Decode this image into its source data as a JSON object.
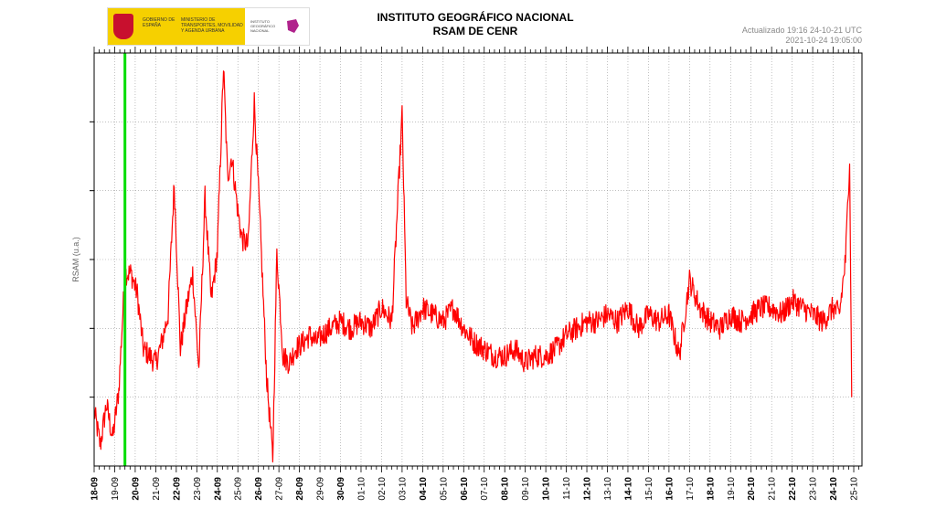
{
  "header": {
    "logo_gov_text": "GOBIERNO DE ESPAÑA",
    "logo_ministry_text": "MINISTERIO DE TRANSPORTES, MOVILIDAD Y AGENDA URBANA",
    "logo_ign_text": "INSTITUTO GEOGRÁFICO NACIONAL",
    "title": "INSTITUTO GEOGRÁFICO NACIONAL",
    "subtitle": "RSAM DE CENR",
    "updated": "Actualizado 19:16 24-10-21 UTC",
    "timestamp": "2021-10-24 19:05:00"
  },
  "colors": {
    "series": "#ff0000",
    "marker": "#00dd00",
    "grid": "#999999",
    "axis": "#000000"
  },
  "chart_data": {
    "type": "line",
    "title": "RSAM DE CENR",
    "ylabel": "RSAM (u.a.)",
    "xlabel": "",
    "ylim": [
      0,
      6
    ],
    "xlim": [
      0,
      37.4
    ],
    "grid": true,
    "tick_labels": [
      "18-09",
      "19-09",
      "20-09",
      "21-09",
      "22-09",
      "23-09",
      "24-09",
      "25-09",
      "26-09",
      "27-09",
      "28-09",
      "29-09",
      "30-09",
      "01-10",
      "02-10",
      "03-10",
      "04-10",
      "05-10",
      "06-10",
      "07-10",
      "08-10",
      "09-10",
      "10-10",
      "11-10",
      "12-10",
      "13-10",
      "14-10",
      "15-10",
      "16-10",
      "17-10",
      "18-10",
      "19-10",
      "20-10",
      "21-10",
      "22-10",
      "23-10",
      "24-10",
      "25-10"
    ],
    "bold_ticks": [
      "18-09",
      "20-09",
      "22-09",
      "24-09",
      "26-09",
      "28-09",
      "30-09",
      "04-10",
      "06-10",
      "08-10",
      "10-10",
      "12-10",
      "14-10",
      "16-10",
      "18-10",
      "20-10",
      "22-10",
      "24-10"
    ],
    "marker_x": 1.5,
    "series": [
      {
        "x": [
          0,
          0.3,
          0.6,
          0.9,
          1.2,
          1.5,
          1.8,
          2.1,
          2.4,
          2.7,
          3.0,
          3.3,
          3.6,
          3.9,
          4.2,
          4.5,
          4.8,
          5.1,
          5.4,
          5.7,
          6.0,
          6.3,
          6.5,
          6.7,
          7.0,
          7.2,
          7.5,
          7.8,
          8.1,
          8.4,
          8.7,
          8.9,
          9.2,
          9.5,
          9.8,
          10.2,
          10.5,
          10.8,
          11.1,
          11.5,
          12.0,
          12.5,
          13.0,
          13.5,
          14.0,
          14.5,
          15.0,
          15.2,
          15.5,
          16.0,
          16.5,
          17.0,
          17.5,
          18.0,
          18.5,
          19.0,
          19.5,
          20.0,
          20.5,
          21.0,
          21.5,
          22.0,
          22.5,
          23.0,
          23.5,
          24.0,
          24.5,
          25.0,
          25.5,
          26.0,
          26.5,
          27.0,
          27.5,
          28.0,
          28.5,
          29.0,
          29.5,
          30.0,
          30.5,
          31.0,
          31.5,
          32.0,
          32.5,
          33.0,
          33.5,
          34.0,
          34.5,
          35.0,
          35.5,
          36.0,
          36.3,
          36.6,
          36.8,
          36.9
        ],
        "values": [
          0.8,
          0.3,
          0.9,
          0.4,
          1.1,
          2.8,
          2.8,
          2.5,
          1.7,
          1.6,
          1.5,
          1.8,
          2.2,
          4.1,
          1.7,
          2.3,
          2.8,
          1.4,
          3.9,
          2.4,
          3.1,
          5.8,
          4.2,
          4.5,
          3.7,
          3.3,
          3.2,
          5.3,
          3.4,
          1.3,
          0.1,
          3.1,
          1.6,
          1.5,
          1.7,
          1.8,
          1.9,
          1.8,
          1.9,
          2.0,
          2.1,
          2.0,
          2.1,
          2.0,
          2.3,
          2.1,
          5.1,
          2.4,
          2.0,
          2.3,
          2.2,
          2.1,
          2.3,
          2.0,
          1.8,
          1.7,
          1.6,
          1.6,
          1.7,
          1.5,
          1.6,
          1.6,
          1.7,
          1.9,
          2.0,
          2.1,
          2.1,
          2.2,
          2.1,
          2.3,
          2.0,
          2.2,
          2.1,
          2.2,
          1.6,
          2.7,
          2.3,
          2.1,
          2.0,
          2.2,
          2.1,
          2.2,
          2.3,
          2.3,
          2.2,
          2.4,
          2.3,
          2.2,
          2.1,
          2.3,
          2.2,
          3.0,
          4.5,
          1.0
        ]
      }
    ]
  }
}
